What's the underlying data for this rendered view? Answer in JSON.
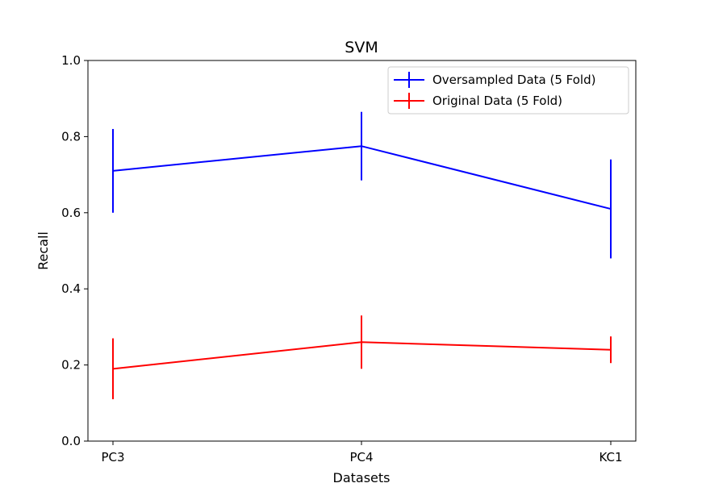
{
  "chart_data": {
    "type": "line",
    "title": "SVM",
    "xlabel": "Datasets",
    "ylabel": "Recall",
    "categories": [
      "PC3",
      "PC4",
      "KC1"
    ],
    "ylim": [
      0.0,
      1.0
    ],
    "yticks": [
      "0.0",
      "0.2",
      "0.4",
      "0.6",
      "0.8",
      "1.0"
    ],
    "grid": false,
    "legend_position": "top-right",
    "series": [
      {
        "name": "Oversampled Data (5 Fold)",
        "color": "#0000ff",
        "values": [
          0.71,
          0.775,
          0.61
        ],
        "err_low": [
          0.6,
          0.685,
          0.48
        ],
        "err_high": [
          0.82,
          0.865,
          0.74
        ]
      },
      {
        "name": "Original Data (5 Fold)",
        "color": "#ff0000",
        "values": [
          0.19,
          0.26,
          0.24
        ],
        "err_low": [
          0.11,
          0.19,
          0.205
        ],
        "err_high": [
          0.27,
          0.33,
          0.275
        ]
      }
    ]
  }
}
